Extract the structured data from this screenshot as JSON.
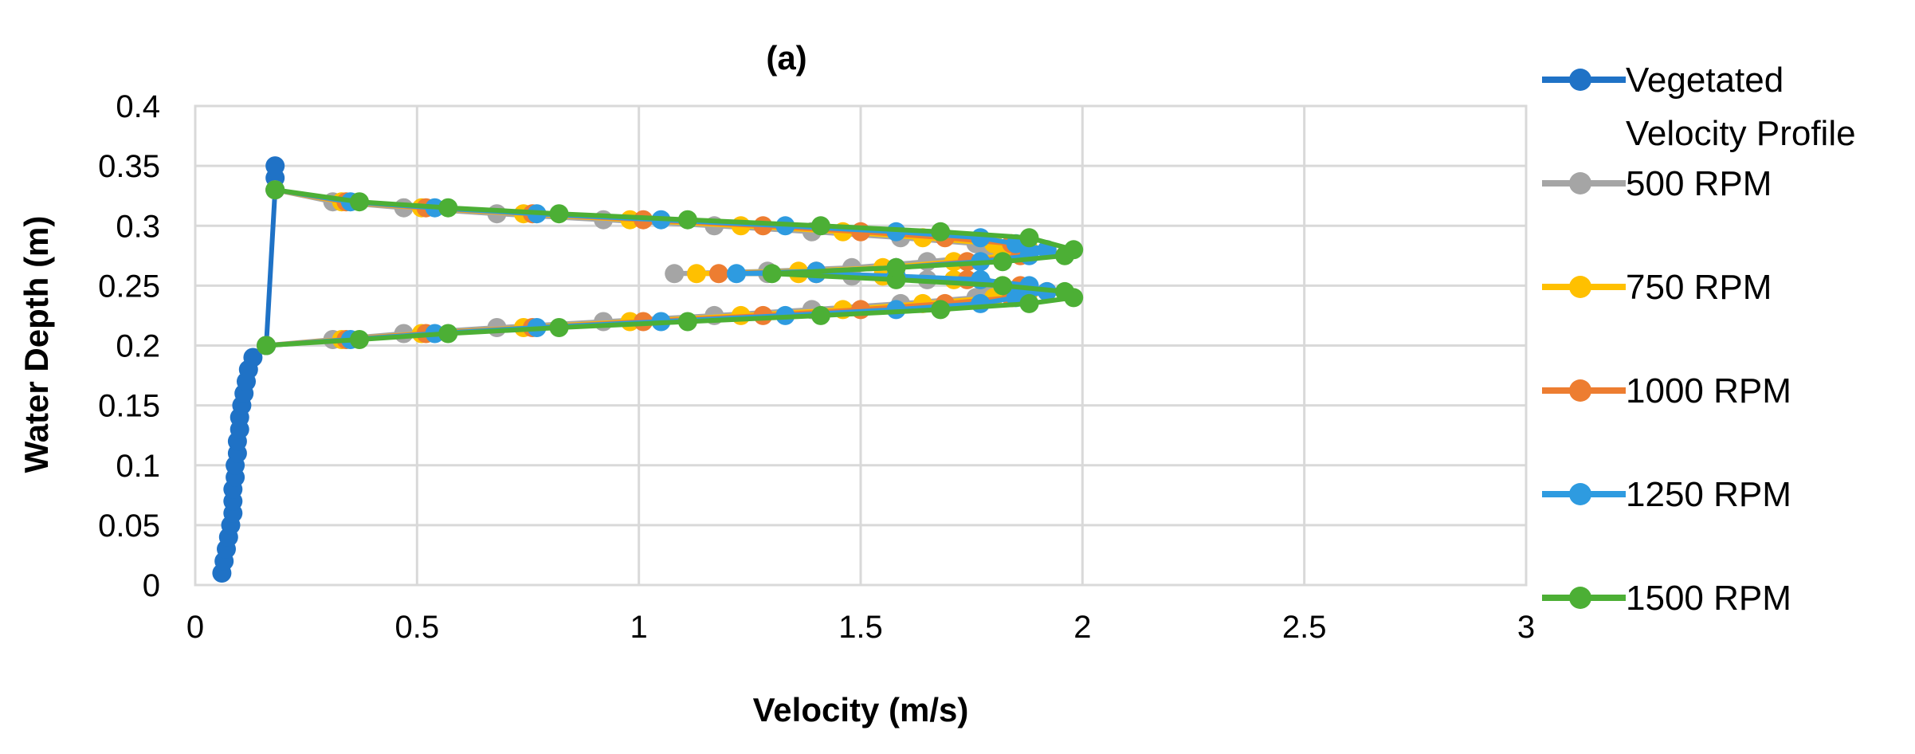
{
  "chart_data": {
    "type": "scatter",
    "title": "(a)",
    "xlabel": "Velocity (m/s)",
    "ylabel": "Water Depth (m)",
    "xlim": [
      0,
      3
    ],
    "ylim": [
      0,
      0.4
    ],
    "xticks": [
      0,
      0.5,
      1,
      1.5,
      2,
      2.5,
      3
    ],
    "xtick_labels": [
      "0",
      "0.5",
      "1",
      "1.5",
      "2",
      "2.5",
      "3"
    ],
    "yticks": [
      0,
      0.05,
      0.1,
      0.15,
      0.2,
      0.25,
      0.3,
      0.35,
      0.4
    ],
    "ytick_labels": [
      "0",
      "0.05",
      "0.1",
      "0.15",
      "0.2",
      "0.25",
      "0.3",
      "0.35",
      "0.4"
    ],
    "grid": true,
    "legend_position": "right",
    "series": [
      {
        "name": "Vegetated Velocity Profile",
        "color": "#1F72C6",
        "points": [
          [
            0.06,
            0.01
          ],
          [
            0.065,
            0.02
          ],
          [
            0.07,
            0.03
          ],
          [
            0.075,
            0.04
          ],
          [
            0.08,
            0.05
          ],
          [
            0.085,
            0.06
          ],
          [
            0.085,
            0.07
          ],
          [
            0.085,
            0.08
          ],
          [
            0.09,
            0.09
          ],
          [
            0.09,
            0.1
          ],
          [
            0.095,
            0.11
          ],
          [
            0.095,
            0.12
          ],
          [
            0.1,
            0.13
          ],
          [
            0.1,
            0.14
          ],
          [
            0.105,
            0.15
          ],
          [
            0.11,
            0.16
          ],
          [
            0.115,
            0.17
          ],
          [
            0.12,
            0.18
          ],
          [
            0.13,
            0.19
          ],
          [
            0.16,
            0.2
          ],
          [
            0.18,
            0.33
          ],
          [
            0.18,
            0.34
          ],
          [
            0.18,
            0.35
          ]
        ]
      },
      {
        "name": "500 RPM",
        "color": "#A5A5A5",
        "points": [
          [
            0.16,
            0.2
          ],
          [
            0.31,
            0.205
          ],
          [
            0.47,
            0.21
          ],
          [
            0.68,
            0.215
          ],
          [
            0.92,
            0.22
          ],
          [
            1.17,
            0.225
          ],
          [
            1.39,
            0.23
          ],
          [
            1.59,
            0.235
          ],
          [
            1.76,
            0.24
          ],
          [
            1.84,
            0.245
          ],
          [
            1.78,
            0.25
          ],
          [
            1.65,
            0.255
          ],
          [
            1.48,
            0.258
          ],
          [
            1.29,
            0.26
          ],
          [
            1.08,
            0.26
          ],
          [
            1.29,
            0.262
          ],
          [
            1.48,
            0.265
          ],
          [
            1.65,
            0.27
          ],
          [
            1.78,
            0.275
          ],
          [
            1.84,
            0.28
          ],
          [
            1.76,
            0.285
          ],
          [
            1.59,
            0.29
          ],
          [
            1.39,
            0.295
          ],
          [
            1.17,
            0.3
          ],
          [
            0.92,
            0.305
          ],
          [
            0.68,
            0.31
          ],
          [
            0.47,
            0.315
          ],
          [
            0.31,
            0.32
          ],
          [
            0.18,
            0.33
          ]
        ]
      },
      {
        "name": "750 RPM",
        "color": "#FFC000",
        "points": [
          [
            0.16,
            0.2
          ],
          [
            0.33,
            0.205
          ],
          [
            0.51,
            0.21
          ],
          [
            0.74,
            0.215
          ],
          [
            0.98,
            0.22
          ],
          [
            1.23,
            0.225
          ],
          [
            1.46,
            0.23
          ],
          [
            1.64,
            0.235
          ],
          [
            1.8,
            0.24
          ],
          [
            1.88,
            0.245
          ],
          [
            1.82,
            0.25
          ],
          [
            1.71,
            0.255
          ],
          [
            1.55,
            0.258
          ],
          [
            1.36,
            0.26
          ],
          [
            1.13,
            0.26
          ],
          [
            1.36,
            0.262
          ],
          [
            1.55,
            0.265
          ],
          [
            1.71,
            0.27
          ],
          [
            1.82,
            0.275
          ],
          [
            1.88,
            0.28
          ],
          [
            1.8,
            0.285
          ],
          [
            1.64,
            0.29
          ],
          [
            1.46,
            0.295
          ],
          [
            1.23,
            0.3
          ],
          [
            0.98,
            0.305
          ],
          [
            0.74,
            0.31
          ],
          [
            0.51,
            0.315
          ],
          [
            0.33,
            0.32
          ],
          [
            0.18,
            0.33
          ]
        ]
      },
      {
        "name": "1000 RPM",
        "color": "#ED7D31",
        "points": [
          [
            0.16,
            0.2
          ],
          [
            0.34,
            0.205
          ],
          [
            0.52,
            0.21
          ],
          [
            0.76,
            0.215
          ],
          [
            1.01,
            0.22
          ],
          [
            1.28,
            0.225
          ],
          [
            1.5,
            0.23
          ],
          [
            1.69,
            0.235
          ],
          [
            1.84,
            0.24
          ],
          [
            1.92,
            0.245
          ],
          [
            1.86,
            0.25
          ],
          [
            1.74,
            0.255
          ],
          [
            1.58,
            0.258
          ],
          [
            1.4,
            0.26
          ],
          [
            1.18,
            0.26
          ],
          [
            1.4,
            0.262
          ],
          [
            1.58,
            0.265
          ],
          [
            1.74,
            0.27
          ],
          [
            1.86,
            0.275
          ],
          [
            1.92,
            0.28
          ],
          [
            1.84,
            0.285
          ],
          [
            1.69,
            0.29
          ],
          [
            1.5,
            0.295
          ],
          [
            1.28,
            0.3
          ],
          [
            1.01,
            0.305
          ],
          [
            0.76,
            0.31
          ],
          [
            0.52,
            0.315
          ],
          [
            0.34,
            0.32
          ],
          [
            0.18,
            0.33
          ]
        ]
      },
      {
        "name": "1250 RPM",
        "color": "#2E9BE0",
        "points": [
          [
            0.16,
            0.2
          ],
          [
            0.35,
            0.205
          ],
          [
            0.54,
            0.21
          ],
          [
            0.77,
            0.215
          ],
          [
            1.05,
            0.22
          ],
          [
            1.33,
            0.225
          ],
          [
            1.58,
            0.23
          ],
          [
            1.77,
            0.235
          ],
          [
            1.85,
            0.24
          ],
          [
            1.92,
            0.245
          ],
          [
            1.88,
            0.25
          ],
          [
            1.77,
            0.255
          ],
          [
            1.58,
            0.258
          ],
          [
            1.4,
            0.26
          ],
          [
            1.22,
            0.26
          ],
          [
            1.4,
            0.262
          ],
          [
            1.58,
            0.265
          ],
          [
            1.77,
            0.27
          ],
          [
            1.88,
            0.275
          ],
          [
            1.92,
            0.28
          ],
          [
            1.85,
            0.285
          ],
          [
            1.77,
            0.29
          ],
          [
            1.58,
            0.295
          ],
          [
            1.33,
            0.3
          ],
          [
            1.05,
            0.305
          ],
          [
            0.77,
            0.31
          ],
          [
            0.54,
            0.315
          ],
          [
            0.35,
            0.32
          ],
          [
            0.18,
            0.33
          ]
        ]
      },
      {
        "name": "1500 RPM",
        "color": "#4CAF35",
        "points": [
          [
            0.16,
            0.2
          ],
          [
            0.37,
            0.205
          ],
          [
            0.57,
            0.21
          ],
          [
            0.82,
            0.215
          ],
          [
            1.11,
            0.22
          ],
          [
            1.41,
            0.225
          ],
          [
            1.68,
            0.23
          ],
          [
            1.88,
            0.235
          ],
          [
            1.98,
            0.24
          ],
          [
            1.96,
            0.245
          ],
          [
            1.82,
            0.25
          ],
          [
            1.58,
            0.255
          ],
          [
            1.3,
            0.26
          ],
          [
            1.58,
            0.265
          ],
          [
            1.82,
            0.27
          ],
          [
            1.96,
            0.275
          ],
          [
            1.98,
            0.28
          ],
          [
            1.88,
            0.29
          ],
          [
            1.68,
            0.295
          ],
          [
            1.41,
            0.3
          ],
          [
            1.11,
            0.305
          ],
          [
            0.82,
            0.31
          ],
          [
            0.57,
            0.315
          ],
          [
            0.37,
            0.32
          ],
          [
            0.18,
            0.33
          ]
        ]
      }
    ]
  }
}
